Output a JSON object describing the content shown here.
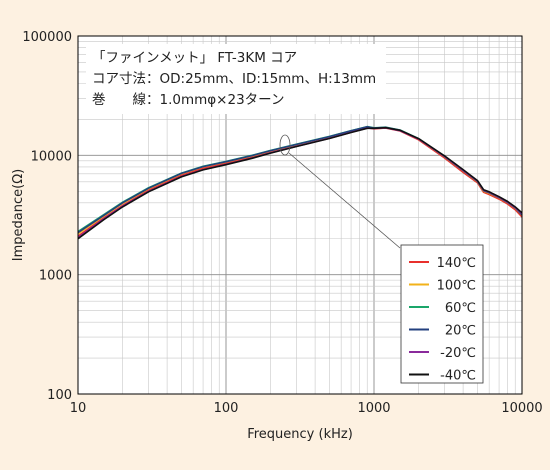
{
  "annotation_lines": [
    "「ファインメット」 FT-3KM コア",
    "コア寸法：OD:25mm、ID:15mm、H:13mm",
    "巻　　線：1.0mmφ×23ターン"
  ],
  "chart_data": {
    "type": "line",
    "xlabel": "Frequency (kHz)",
    "ylabel": "Impedance(Ω)",
    "x_scale": "log",
    "y_scale": "log",
    "xlim": [
      10,
      10000
    ],
    "ylim": [
      100,
      100000
    ],
    "x_ticks": [
      10,
      100,
      1000,
      10000
    ],
    "x_tick_labels": [
      "10",
      "100",
      "1000",
      "10000"
    ],
    "y_ticks": [
      100,
      1000,
      10000,
      100000
    ],
    "y_tick_labels": [
      "100",
      "1000",
      "10000",
      "100000"
    ],
    "grid": true,
    "legend_position": "bottom-right",
    "x": [
      10,
      15,
      20,
      30,
      50,
      70,
      100,
      150,
      200,
      300,
      500,
      700,
      900,
      1000,
      1200,
      1500,
      2000,
      3000,
      4000,
      5000,
      5500,
      6000,
      7000,
      8000,
      9000,
      10000
    ],
    "series": [
      {
        "name": "140℃",
        "color": "#e8302c",
        "values": [
          2100,
          3000,
          3800,
          5100,
          6800,
          7800,
          8600,
          9700,
          10700,
          12100,
          14100,
          15800,
          17000,
          16700,
          16900,
          16000,
          13500,
          9500,
          7200,
          5900,
          4900,
          4700,
          4300,
          3900,
          3500,
          3050
        ]
      },
      {
        "name": "100℃",
        "color": "#f2b21a",
        "values": [
          2200,
          3100,
          3950,
          5250,
          7000,
          8000,
          8800,
          9900,
          10900,
          12300,
          14300,
          16000,
          17300,
          16900,
          17100,
          16200,
          13700,
          9700,
          7400,
          6000,
          5000,
          4800,
          4400,
          4000,
          3600,
          3150
        ]
      },
      {
        "name": "60℃",
        "color": "#1aa66a",
        "values": [
          2300,
          3200,
          4050,
          5350,
          7100,
          8100,
          8900,
          10000,
          11000,
          12400,
          14400,
          16100,
          17400,
          17000,
          17200,
          16300,
          13800,
          9800,
          7500,
          6100,
          5100,
          4900,
          4450,
          4050,
          3650,
          3200
        ]
      },
      {
        "name": "20℃",
        "color": "#23407f",
        "values": [
          2250,
          3150,
          4000,
          5300,
          7050,
          8050,
          8850,
          9950,
          10950,
          12350,
          14350,
          16050,
          17350,
          16950,
          17150,
          16250,
          13750,
          9750,
          7450,
          6050,
          5050,
          4850,
          4420,
          4020,
          3620,
          3170
        ]
      },
      {
        "name": "-20℃",
        "color": "#8a2a9b",
        "values": [
          2050,
          2950,
          3750,
          5000,
          6650,
          7600,
          8400,
          9500,
          10500,
          11900,
          13900,
          15600,
          16900,
          16800,
          17000,
          16100,
          13700,
          9800,
          7500,
          6100,
          5100,
          4900,
          4450,
          4050,
          3650,
          3250
        ]
      },
      {
        "name": "-40℃",
        "color": "#111111",
        "values": [
          2000,
          2900,
          3700,
          4950,
          6600,
          7550,
          8350,
          9450,
          10450,
          11850,
          13850,
          15550,
          16850,
          16850,
          17050,
          16200,
          13800,
          9900,
          7600,
          6150,
          5150,
          4950,
          4500,
          4100,
          3700,
          3300
        ]
      }
    ]
  }
}
